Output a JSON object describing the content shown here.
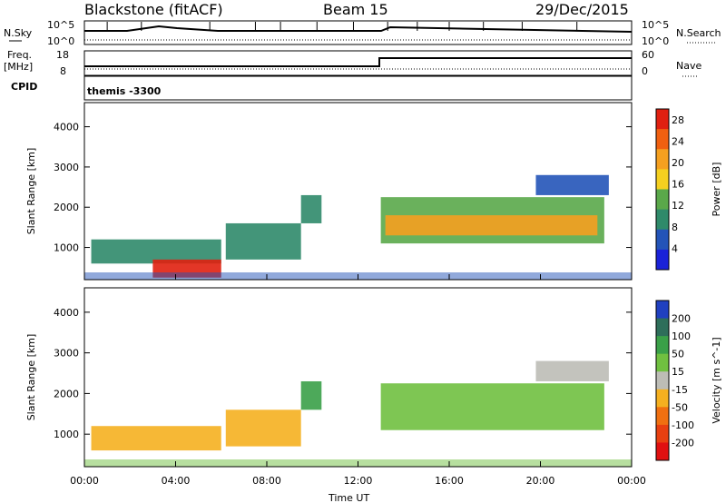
{
  "header": {
    "radar": "Blackstone (fitACF)",
    "beam": "Beam 15",
    "date": "29/Dec/2015"
  },
  "panels": {
    "nsky_label": "N.Sky",
    "nsearch_label": "N.Search",
    "nsky_ticks": [
      "10^5",
      "10^0"
    ],
    "nsearch_ticks": [
      "10^5",
      "10^0"
    ],
    "freq_label_line1": "Freq.",
    "freq_label_line2": "[MHz]",
    "freq_ticks": [
      "18",
      "8"
    ],
    "nave_label": "Nave",
    "nave_ticks": [
      "60",
      "0"
    ],
    "cpid_label": "CPID",
    "cpid_value": "themis -3300"
  },
  "colors": {
    "power_scale": [
      "#1a22d8",
      "#2354b8",
      "#2f8a6a",
      "#5aa84a",
      "#f5d020",
      "#f5a020",
      "#f06010",
      "#e02010"
    ],
    "velocity_scale": [
      "#2040c0",
      "#2e6e5a",
      "#3aa048",
      "#70c040",
      "#bdbdb6",
      "#f5b020",
      "#f07010",
      "#e84010",
      "#e01010"
    ],
    "background": "#ffffff"
  },
  "chart_data": [
    {
      "type": "heatmap",
      "title": "Power",
      "xlabel": "Time UT",
      "ylabel": "Slant Range [km]",
      "x_ticks": [
        "00:00",
        "04:00",
        "08:00",
        "12:00",
        "16:00",
        "20:00",
        "00:00"
      ],
      "y_ticks": [
        1000,
        2000,
        3000,
        4000
      ],
      "ylim": [
        200,
        4600
      ],
      "xlim_hours": [
        0,
        24
      ],
      "colorbar": {
        "label": "Power [dB]",
        "ticks": [
          4,
          8,
          12,
          16,
          20,
          24,
          28
        ],
        "range": [
          0,
          30
        ]
      },
      "regions": [
        {
          "t0": 0.3,
          "t1": 6.0,
          "r0": 600,
          "r1": 1200,
          "value": 10
        },
        {
          "t0": 3.0,
          "t1": 6.0,
          "r0": 250,
          "r1": 700,
          "value": 28
        },
        {
          "t0": 6.2,
          "t1": 9.5,
          "r0": 700,
          "r1": 1600,
          "value": 10
        },
        {
          "t0": 9.5,
          "t1": 10.4,
          "r0": 1600,
          "r1": 2300,
          "value": 8
        },
        {
          "t0": 13.0,
          "t1": 22.8,
          "r0": 1100,
          "r1": 2250,
          "value": 12
        },
        {
          "t0": 13.2,
          "t1": 22.5,
          "r0": 1300,
          "r1": 1800,
          "value": 22
        },
        {
          "t0": 19.8,
          "t1": 23.0,
          "r0": 2300,
          "r1": 2800,
          "value": 6
        }
      ]
    },
    {
      "type": "heatmap",
      "title": "Velocity",
      "xlabel": "Time UT",
      "ylabel": "Slant Range [km]",
      "x_ticks": [
        "00:00",
        "04:00",
        "08:00",
        "12:00",
        "16:00",
        "20:00",
        "00:00"
      ],
      "y_ticks": [
        1000,
        2000,
        3000,
        4000
      ],
      "ylim": [
        200,
        4600
      ],
      "xlim_hours": [
        0,
        24
      ],
      "colorbar": {
        "label": "Velocity [m s^-1]",
        "ticks": [
          200,
          100,
          50,
          15,
          -15,
          -50,
          -100,
          -200
        ]
      },
      "regions": [
        {
          "t0": 0.3,
          "t1": 6.0,
          "r0": 600,
          "r1": 1200,
          "value": -50
        },
        {
          "t0": 6.2,
          "t1": 9.5,
          "r0": 700,
          "r1": 1600,
          "value": -50
        },
        {
          "t0": 9.5,
          "t1": 10.4,
          "r0": 1600,
          "r1": 2300,
          "value": 50
        },
        {
          "t0": 13.0,
          "t1": 22.8,
          "r0": 1100,
          "r1": 2250,
          "value": 0
        },
        {
          "t0": 19.8,
          "t1": 23.0,
          "r0": 2300,
          "r1": 2800,
          "value": -15
        }
      ]
    }
  ]
}
